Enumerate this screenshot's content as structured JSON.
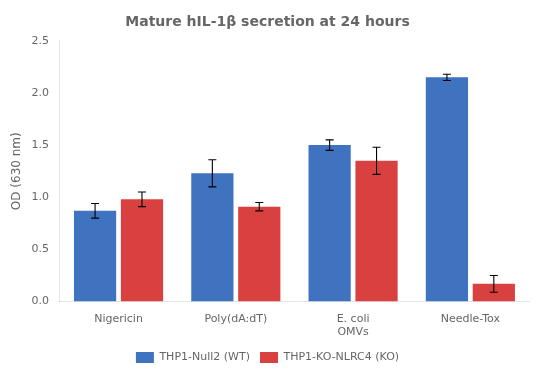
{
  "chart_data": {
    "type": "bar",
    "title": "Mature hIL-1β secretion at 24 hours",
    "ylabel": "OD (630 nm)",
    "categories": [
      "Nigericin",
      "Poly(dA:dT)",
      "E. coli\nOMVs",
      "Needle-Tox"
    ],
    "series": [
      {
        "name": "THP1-Null2 (WT)",
        "color": "#3F72BF",
        "values": [
          0.87,
          1.23,
          1.5,
          2.15
        ],
        "errors": [
          0.07,
          0.13,
          0.05,
          0.03
        ]
      },
      {
        "name": "THP1-KO-NLRC4 (KO)",
        "color": "#D94040",
        "values": [
          0.98,
          0.91,
          1.35,
          0.17
        ],
        "errors": [
          0.07,
          0.04,
          0.13,
          0.08
        ]
      }
    ],
    "ylim": [
      0.0,
      2.5
    ],
    "yticks": [
      {
        "value": 0.0,
        "label": "0.0"
      },
      0.5,
      {
        "value": 1.0,
        "label": "1.0"
      },
      1.5,
      {
        "value": 2.0,
        "label": "2.0"
      },
      2.5
    ],
    "grid": false,
    "legend": "bottom"
  }
}
